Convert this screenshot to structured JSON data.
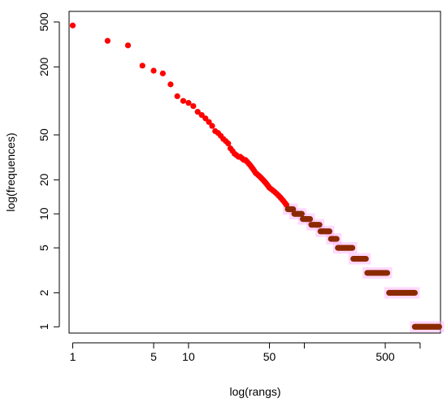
{
  "chart_data": {
    "type": "scatter",
    "title": "",
    "xlabel": "log(rangs)",
    "ylabel": "log(frequences)",
    "x_scale": "log",
    "y_scale": "log",
    "xlim": [
      0.93,
      1500
    ],
    "ylim": [
      0.88,
      620
    ],
    "x_ticks": [
      1,
      5,
      10,
      50,
      100,
      500,
      1000
    ],
    "x_tick_labels": [
      "1",
      "5",
      "10",
      "50",
      "",
      "500",
      ""
    ],
    "y_ticks": [
      1,
      2,
      5,
      10,
      20,
      50,
      200,
      500
    ],
    "y_tick_labels": [
      "1",
      "2",
      "5",
      "10",
      "20",
      "50",
      "200",
      "500"
    ],
    "grid": false,
    "colors": {
      "observed_points": "#ff0000",
      "fitted_points": "#8b2a00",
      "fitted_band": "#ffaaff",
      "frame": "#000000"
    },
    "series": [
      {
        "values": [
          [
            1,
            465
          ],
          [
            2,
            340
          ],
          [
            3,
            310
          ],
          [
            4,
            205
          ],
          [
            5,
            185
          ],
          [
            6,
            175
          ],
          [
            7,
            140
          ],
          [
            8,
            110
          ],
          [
            9,
            100
          ],
          [
            10,
            96
          ],
          [
            11,
            90
          ],
          [
            12,
            80
          ],
          [
            13,
            75
          ],
          [
            14,
            70
          ],
          [
            15,
            65
          ],
          [
            16,
            60
          ],
          [
            17,
            54
          ],
          [
            18,
            52
          ],
          [
            19,
            49
          ],
          [
            20,
            46
          ],
          [
            21,
            44
          ],
          [
            22,
            42
          ],
          [
            23,
            38
          ],
          [
            24,
            36
          ],
          [
            25,
            34
          ],
          [
            26,
            33
          ],
          [
            27,
            32
          ],
          [
            28,
            32
          ],
          [
            29,
            31
          ],
          [
            30,
            30
          ],
          [
            31,
            30
          ],
          [
            32,
            29
          ],
          [
            33,
            28
          ],
          [
            34,
            27
          ],
          [
            35,
            26
          ],
          [
            36,
            25
          ],
          [
            37,
            24
          ],
          [
            38,
            23
          ],
          [
            39,
            22.5
          ],
          [
            40,
            22
          ],
          [
            41,
            21.5
          ],
          [
            42,
            21
          ],
          [
            43,
            20.5
          ],
          [
            44,
            20
          ],
          [
            45,
            19.5
          ],
          [
            46,
            19
          ],
          [
            47,
            18.5
          ],
          [
            48,
            18
          ],
          [
            49,
            17.5
          ],
          [
            50,
            17
          ],
          [
            52,
            16.5
          ],
          [
            54,
            16
          ],
          [
            56,
            15.5
          ],
          [
            58,
            15
          ],
          [
            60,
            14.5
          ],
          [
            62,
            14
          ],
          [
            64,
            13.5
          ],
          [
            66,
            13
          ],
          [
            68,
            12.5
          ],
          [
            70,
            12
          ]
        ]
      }
    ],
    "steps": [
      {
        "y": 11,
        "x_from": 72,
        "x_to": 80
      },
      {
        "y": 10,
        "x_from": 82,
        "x_to": 95
      },
      {
        "y": 9,
        "x_from": 97,
        "x_to": 112
      },
      {
        "y": 8,
        "x_from": 115,
        "x_to": 135
      },
      {
        "y": 7,
        "x_from": 138,
        "x_to": 165
      },
      {
        "y": 6,
        "x_from": 170,
        "x_to": 190
      },
      {
        "y": 5,
        "x_from": 195,
        "x_to": 260
      },
      {
        "y": 4,
        "x_from": 265,
        "x_to": 340
      },
      {
        "y": 3,
        "x_from": 350,
        "x_to": 520
      },
      {
        "y": 2,
        "x_from": 540,
        "x_to": 900
      },
      {
        "y": 1,
        "x_from": 900,
        "x_to": 1460
      }
    ]
  }
}
